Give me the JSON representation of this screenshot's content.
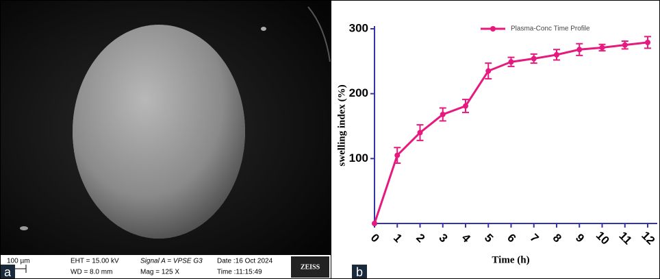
{
  "panels": {
    "a": {
      "label": "a",
      "scale_bar": "100 µm",
      "brand": "ZEISS",
      "info": [
        "EHT = 15.00 kV",
        "WD = 8.0 mm",
        "Signal A = VPSE G3",
        "Mag =   125 X",
        "Date :16 Oct 2024",
        "Time :11:15:49"
      ]
    },
    "b": {
      "label": "b"
    }
  },
  "chart_data": {
    "type": "line",
    "x_label": "Time (h)",
    "y_label": "swelling index (%)",
    "x": [
      0,
      1,
      2,
      3,
      4,
      5,
      6,
      7,
      8,
      9,
      10,
      11,
      12
    ],
    "xlim": [
      0,
      12
    ],
    "xticks": [
      0,
      1,
      2,
      3,
      4,
      5,
      6,
      7,
      8,
      9,
      10,
      11,
      12
    ],
    "ylim": [
      0,
      300
    ],
    "yticks": [
      100,
      200,
      300
    ],
    "legend": "upper right",
    "series": [
      {
        "name": "Plasma-Conc Time Profile",
        "color": "#e6197f",
        "values": [
          0,
          105,
          140,
          168,
          181,
          235,
          249,
          254,
          260,
          268,
          271,
          275,
          279
        ],
        "errors": [
          0,
          12,
          12,
          10,
          10,
          12,
          7,
          7,
          8,
          9,
          5,
          6,
          9
        ]
      }
    ]
  }
}
